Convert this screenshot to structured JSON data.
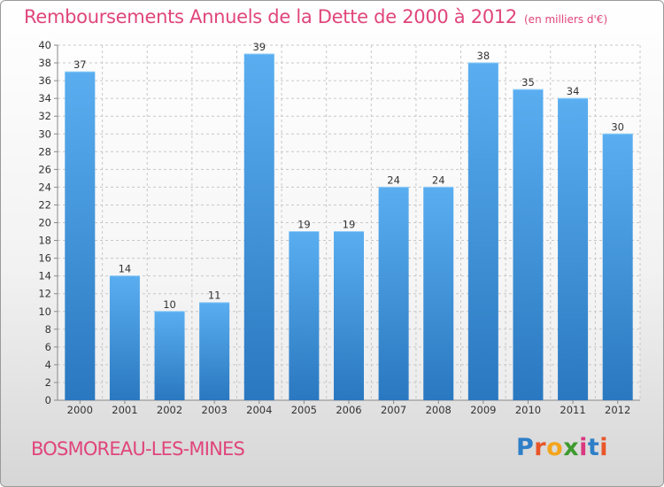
{
  "header": {
    "title": "Remboursements Annuels de la Dette de 2000 à 2012",
    "unit": "(en milliers d'€)"
  },
  "footer": {
    "commune": "BOSMOREAU-LES-MINES",
    "brand": "Proxiti",
    "brand_letters": [
      {
        "char": "P",
        "color": "#2f7fc8"
      },
      {
        "char": "r",
        "color": "#e8562a"
      },
      {
        "char": "o",
        "color": "#f3a51c"
      },
      {
        "char": "x",
        "color": "#3f9a2f"
      },
      {
        "char": "i",
        "color": "#d9397f"
      },
      {
        "char": "t",
        "color": "#2f7fc8"
      },
      {
        "char": "i",
        "color": "#e8562a"
      }
    ]
  },
  "chart_data": {
    "type": "bar",
    "categories": [
      "2000",
      "2001",
      "2002",
      "2003",
      "2004",
      "2005",
      "2006",
      "2007",
      "2008",
      "2009",
      "2010",
      "2011",
      "2012"
    ],
    "values": [
      37,
      14,
      10,
      11,
      39,
      19,
      19,
      24,
      24,
      38,
      35,
      34,
      30
    ],
    "ylim": [
      0,
      40
    ],
    "yticks": [
      0,
      2,
      4,
      6,
      8,
      10,
      12,
      14,
      16,
      18,
      20,
      22,
      24,
      26,
      28,
      30,
      32,
      34,
      36,
      38,
      40
    ],
    "grid": true,
    "colors": {
      "bar_top": "#5aaef0",
      "bar_bottom": "#2a78c0",
      "grid": "#c8c8c8",
      "axis": "#888888",
      "text": "#333333"
    }
  }
}
